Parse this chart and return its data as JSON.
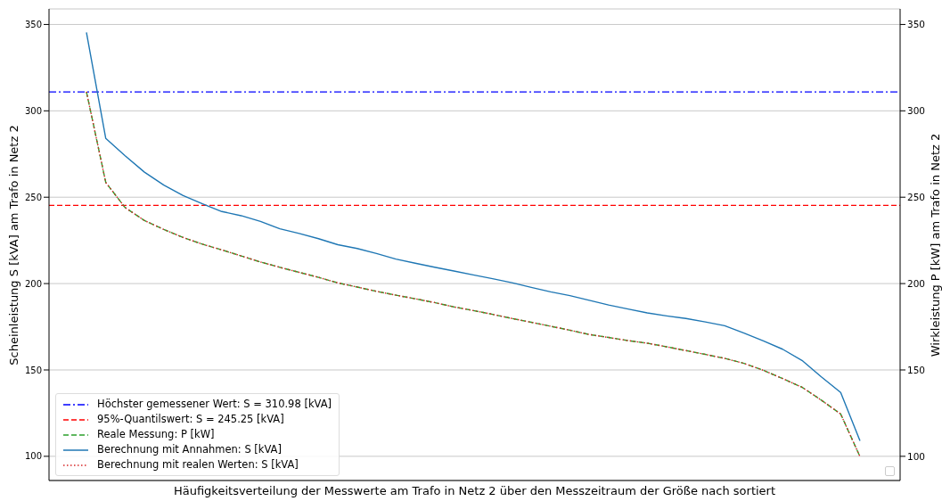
{
  "chart_data": {
    "type": "line",
    "xlabel": "Häufigkeitsverteilung der Messwerte am Trafo in Netz 2 über den Messzeitraum der Größe nach sortiert",
    "ylabel": "Scheinleistung S [kVA] am Trafo in Netz 2",
    "y2label": "Wirkleistung P [kW] am Trafo in Netz 2",
    "categories": [
      null,
      null,
      null,
      null,
      null,
      null,
      null,
      null,
      null,
      null,
      null,
      null,
      null,
      null,
      null,
      null,
      null,
      null,
      null,
      null,
      null,
      null,
      null,
      null,
      null,
      null,
      null,
      null,
      null,
      null,
      null,
      null,
      null,
      null,
      null,
      null,
      null,
      null,
      null,
      null,
      null
    ],
    "series": [
      {
        "name": "Reale Messung: P [kW]",
        "color": "#2ca02c",
        "line_style": "dashed",
        "values": [
          311,
          258.5,
          244,
          236.5,
          231.3,
          226.7,
          222.8,
          219.5,
          216,
          212.5,
          209.4,
          206.5,
          203.6,
          200.4,
          198,
          195.5,
          193.3,
          191.2,
          189,
          186.5,
          184.4,
          182.2,
          179.8,
          177.6,
          175.3,
          173,
          170.5,
          168.8,
          167,
          165.5,
          163.4,
          161.2,
          159,
          156.7,
          153.8,
          149.8,
          145,
          140,
          132.5,
          124.5,
          99.8
        ]
      },
      {
        "name": "Berechnung mit Annahmen: S [kVA]",
        "color": "#1f77b4",
        "line_style": "solid",
        "values": [
          345.4,
          284,
          274,
          264.5,
          257,
          251,
          246.2,
          241.7,
          239.3,
          236,
          231.7,
          229,
          226,
          222.5,
          220.3,
          217.4,
          214.2,
          211.8,
          209.5,
          207.3,
          205,
          202.8,
          200.5,
          197.8,
          195.2,
          193,
          190.3,
          187.6,
          185.3,
          183,
          181.3,
          179.8,
          177.8,
          175.6,
          171.3,
          166.8,
          162,
          155.5,
          146,
          137,
          109
        ]
      },
      {
        "name": "Berechnung mit realen Werten: S [kVA]",
        "color": "#d62728",
        "line_style": "dotted",
        "values": [
          311,
          258.5,
          244,
          236.5,
          231.3,
          226.7,
          222.8,
          219.5,
          216,
          212.5,
          209.4,
          206.5,
          203.6,
          200.4,
          198,
          195.5,
          193.3,
          191.2,
          189,
          186.5,
          184.4,
          182.2,
          179.8,
          177.6,
          175.3,
          173,
          170.5,
          168.8,
          167,
          165.5,
          163.4,
          161.2,
          159,
          156.7,
          153.8,
          149.8,
          145,
          140,
          132.5,
          124.5,
          99.8
        ]
      }
    ],
    "ref_lines": [
      {
        "axis": "y",
        "value": 310.98,
        "label": "Höchster gemessener Wert: S = 310.98 [kVA]",
        "color": "#0000ff",
        "line_style": "dashdot"
      },
      {
        "axis": "y",
        "value": 245.25,
        "label": "95%-Quantilswert: S = 245.25 [kVA]",
        "color": "#ff0000",
        "line_style": "dashed"
      }
    ],
    "ylim": [
      86,
      359
    ],
    "yticks": [
      100,
      150,
      200,
      250,
      300,
      350
    ],
    "y2lim": [
      86,
      359
    ],
    "y2ticks": [
      100,
      150,
      200,
      250,
      300,
      350
    ],
    "grid": "y",
    "legend": "bottom left",
    "marker": "none"
  }
}
